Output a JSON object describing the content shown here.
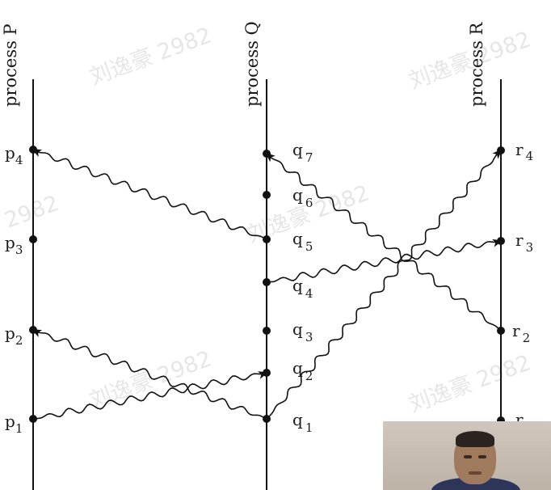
{
  "processes": [
    {
      "id": "P",
      "label": "process  P"
    },
    {
      "id": "Q",
      "label": "process  Q"
    },
    {
      "id": "R",
      "label": "process  R"
    }
  ],
  "events": {
    "p": [
      {
        "letter": "p",
        "sub": "4"
      },
      {
        "letter": "p",
        "sub": "3"
      },
      {
        "letter": "p",
        "sub": "2"
      },
      {
        "letter": "p",
        "sub": "1"
      }
    ],
    "q": [
      {
        "letter": "q",
        "sub": "7"
      },
      {
        "letter": "q",
        "sub": "6"
      },
      {
        "letter": "q",
        "sub": "5"
      },
      {
        "letter": "q",
        "sub": "4"
      },
      {
        "letter": "q",
        "sub": "3"
      },
      {
        "letter": "q",
        "sub": "2"
      },
      {
        "letter": "q",
        "sub": "1"
      }
    ],
    "r": [
      {
        "letter": "r",
        "sub": "4"
      },
      {
        "letter": "r",
        "sub": "3"
      },
      {
        "letter": "r",
        "sub": "2"
      },
      {
        "letter": "r",
        "sub": ""
      }
    ]
  },
  "messages": [
    {
      "from": "p1",
      "to": "q2"
    },
    {
      "from": "q1",
      "to": "p2"
    },
    {
      "from": "q1",
      "to": "r4"
    },
    {
      "from": "q4",
      "to": "r3"
    },
    {
      "from": "q5",
      "to": "p4"
    },
    {
      "from": "r2",
      "to": "q7"
    }
  ],
  "watermark": {
    "text_full": "刘逸豪 2982",
    "text_short": "2982"
  },
  "webcam": {
    "icon": "presenter-webcam-thumbnail"
  }
}
